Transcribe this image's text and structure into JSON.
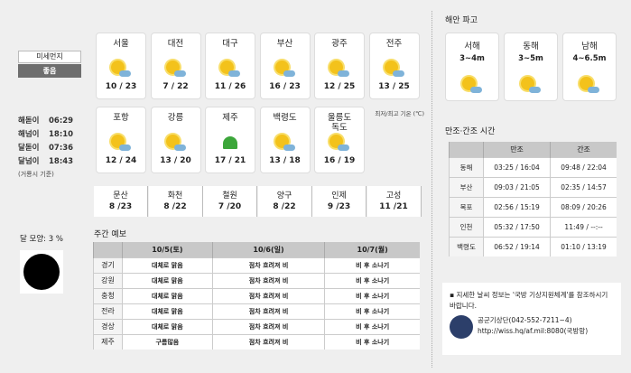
{
  "dust": {
    "label": "미세먼지",
    "value": "좋음"
  },
  "sun_moon": {
    "items": [
      {
        "label": "해돋이",
        "time": "06:29"
      },
      {
        "label": "해넘이",
        "time": "18:10"
      },
      {
        "label": "달돋이",
        "time": "07:36"
      },
      {
        "label": "달넘이",
        "time": "18:43"
      }
    ],
    "note": "(거룡시 기준)"
  },
  "moon": {
    "label": "달 모양:  3 %",
    "phase_percent": 3
  },
  "cities": [
    {
      "name": "서울",
      "temp": "10 / 23",
      "icon": "sun-cloud-icon"
    },
    {
      "name": "대전",
      "temp": "7 / 22",
      "icon": "sun-cloud-icon"
    },
    {
      "name": "대구",
      "temp": "11 / 26",
      "icon": "sun-cloud-icon"
    },
    {
      "name": "부산",
      "temp": "16 / 23",
      "icon": "sun-cloud-icon"
    },
    {
      "name": "광주",
      "temp": "12 / 25",
      "icon": "sun-cloud-icon"
    },
    {
      "name": "전주",
      "temp": "13 / 25",
      "icon": "sun-cloud-icon"
    },
    {
      "name": "포항",
      "temp": "12 / 24",
      "icon": "sun-cloud-icon"
    },
    {
      "name": "강릉",
      "temp": "13 / 20",
      "icon": "sun-cloud-icon"
    },
    {
      "name": "제주",
      "temp": "17 / 21",
      "icon": "umbrella-icon"
    },
    {
      "name": "백령도",
      "temp": "13 / 18",
      "icon": "sun-cloud-icon"
    },
    {
      "name": "울릉도\n독도",
      "temp": "16 / 19",
      "icon": "sun-cloud-rain-icon"
    }
  ],
  "temp_note": "최저/최고 기온 (℃)",
  "small_cities": [
    {
      "name": "문산",
      "temp": "8 /23"
    },
    {
      "name": "화천",
      "temp": "8 /22"
    },
    {
      "name": "철원",
      "temp": "7 /20"
    },
    {
      "name": "양구",
      "temp": "8 /22"
    },
    {
      "name": "인제",
      "temp": "9 /23"
    },
    {
      "name": "고성",
      "temp": "11 /21"
    }
  ],
  "weekly": {
    "title": "주간 예보",
    "headers": [
      "",
      "10/5(토)",
      "10/6(일)",
      "10/7(월)"
    ],
    "rows": [
      [
        "경기",
        "대체로 맑음",
        "점차 흐려져 비",
        "비 후 소나기"
      ],
      [
        "강원",
        "대체로 맑음",
        "점차 흐려져 비",
        "비 후 소나기"
      ],
      [
        "충청",
        "대체로 맑음",
        "점차 흐려져 비",
        "비 후 소나기"
      ],
      [
        "전라",
        "대체로 맑음",
        "점차 흐려져 비",
        "비 후 소나기"
      ],
      [
        "경상",
        "대체로 맑음",
        "점차 흐려져 비",
        "비 후 소나기"
      ],
      [
        "제주",
        "구름많음",
        "점차 흐려져 비",
        "비 후 소나기"
      ]
    ]
  },
  "waves": {
    "title": "해안 파고",
    "items": [
      {
        "name": "서해",
        "height": "3~4m"
      },
      {
        "name": "동해",
        "height": "3~5m"
      },
      {
        "name": "남해",
        "height": "4~6.5m"
      }
    ]
  },
  "tide": {
    "title": "만조·간조 시간",
    "headers": [
      "",
      "만조",
      "간조"
    ],
    "rows": [
      [
        "동해",
        "03:25 / 16:04",
        "09:48 / 22:04"
      ],
      [
        "부산",
        "09:03 / 21:05",
        "02:35 / 14:57"
      ],
      [
        "목포",
        "02:56 / 15:19",
        "08:09 / 20:26"
      ],
      [
        "인천",
        "05:32 / 17:50",
        "11:49 / --:--"
      ],
      [
        "백령도",
        "06:52 / 19:14",
        "01:10 / 13:19"
      ]
    ]
  },
  "info": {
    "text": "▪ 지세한 날씨 정보는 '국방 기상지원체계'를 참조하시기 바랍니다.",
    "phone": "공군기상단(042-552-7211~4)",
    "url": "http://wiss.hq/af.mil:8080(국방망)"
  },
  "colors": {
    "background": "#efefef",
    "header_gray": "#c8c8c8",
    "dust_good": "#6e6e6e"
  }
}
